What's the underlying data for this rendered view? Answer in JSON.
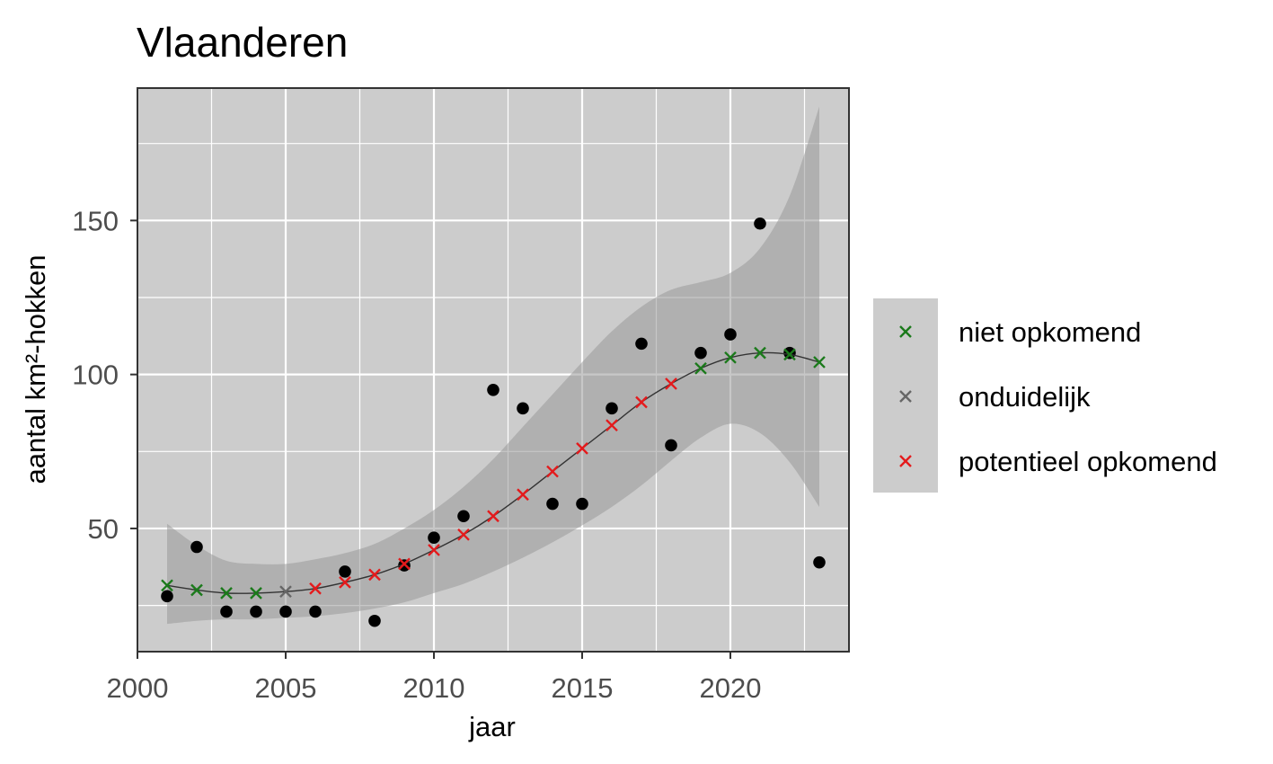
{
  "chart_data": {
    "type": "scatter",
    "title": "Vlaanderen",
    "xlabel": "jaar",
    "ylabel": "aantal km²-hokken",
    "xlim": [
      2000,
      2024
    ],
    "ylim": [
      10,
      193
    ],
    "x_ticks": [
      2000,
      2005,
      2010,
      2015,
      2020
    ],
    "x_tick_labels": [
      "2000",
      "2005",
      "2010",
      "2015",
      "2020"
    ],
    "y_ticks": [
      50,
      100,
      150
    ],
    "y_tick_labels": [
      "50",
      "100",
      "150"
    ],
    "grid": true,
    "legend_position": "right",
    "colors": {
      "panel_background": "#cccccc",
      "ribbon": "#999999",
      "grid": "#ffffff",
      "observed_points": "#000000",
      "trend_line": "#333333",
      "niet opkomend": "#1b7a1b",
      "onduidelijk": "#666666",
      "potentieel opkomend": "#e41a1c"
    },
    "observed": {
      "x": [
        2001,
        2002,
        2003,
        2004,
        2005,
        2006,
        2007,
        2008,
        2009,
        2010,
        2011,
        2012,
        2013,
        2014,
        2015,
        2016,
        2017,
        2018,
        2019,
        2020,
        2021,
        2022,
        2023
      ],
      "y": [
        28,
        44,
        23,
        23,
        23,
        23,
        36,
        20,
        38,
        47,
        54,
        95,
        89,
        58,
        58,
        89,
        110,
        77,
        107,
        113,
        149,
        107,
        39
      ]
    },
    "trend": {
      "x": [
        2001,
        2002,
        2003,
        2004,
        2005,
        2006,
        2007,
        2008,
        2009,
        2010,
        2011,
        2012,
        2013,
        2014,
        2015,
        2016,
        2017,
        2018,
        2019,
        2020,
        2021,
        2022,
        2023
      ],
      "fit": [
        31.5,
        30,
        29,
        29,
        29.5,
        30.5,
        32.5,
        35,
        38.5,
        43,
        48,
        54,
        61,
        68.5,
        76,
        83.5,
        91,
        97,
        102,
        105.5,
        107,
        106.5,
        104
      ],
      "lower": [
        19,
        20,
        20.5,
        20.5,
        21,
        21.5,
        22.5,
        24,
        26,
        29,
        32,
        36,
        40.5,
        45.5,
        51,
        57,
        64,
        72,
        79.5,
        84,
        81,
        71.5,
        57
      ],
      "upper": [
        51.5,
        44.5,
        39.5,
        38.5,
        38.5,
        40,
        42,
        45,
        50,
        56,
        63.5,
        72.5,
        83,
        93.5,
        104,
        114,
        122,
        127.5,
        130,
        133,
        141,
        158,
        187
      ],
      "category": [
        "niet opkomend",
        "niet opkomend",
        "niet opkomend",
        "niet opkomend",
        "onduidelijk",
        "potentieel opkomend",
        "potentieel opkomend",
        "potentieel opkomend",
        "potentieel opkomend",
        "potentieel opkomend",
        "potentieel opkomend",
        "potentieel opkomend",
        "potentieel opkomend",
        "potentieel opkomend",
        "potentieel opkomend",
        "potentieel opkomend",
        "potentieel opkomend",
        "potentieel opkomend",
        "niet opkomend",
        "niet opkomend",
        "niet opkomend",
        "niet opkomend",
        "niet opkomend"
      ]
    },
    "legend": {
      "entries": [
        "niet opkomend",
        "onduidelijk",
        "potentieel opkomend"
      ]
    }
  }
}
